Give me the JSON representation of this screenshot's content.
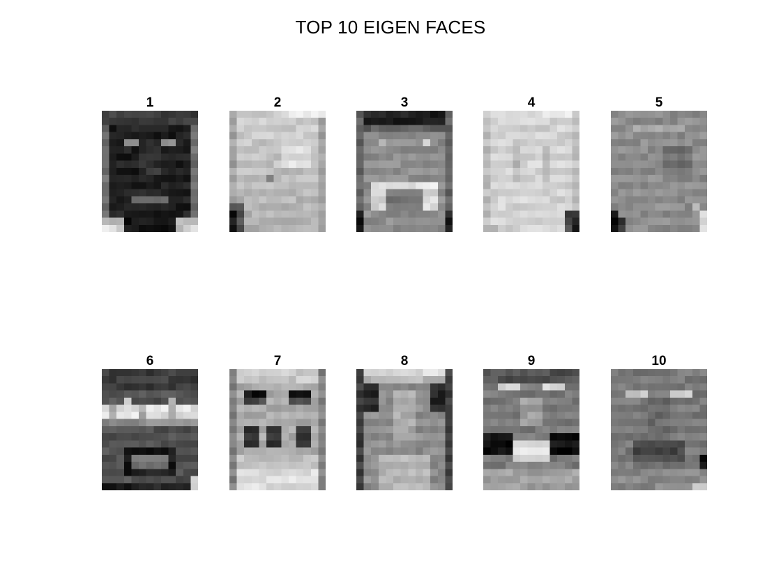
{
  "figure": {
    "title": "TOP 10 EIGEN FACES"
  },
  "panels": [
    {
      "label": "1",
      "shading": "dark",
      "feature": "dark face, pale forehead band, light cheek highlights"
    },
    {
      "label": "2",
      "shading": "light",
      "feature": "light face, dark lower-left corner"
    },
    {
      "label": "3",
      "shading": "medium",
      "feature": "dark top band, bright mouth arc"
    },
    {
      "label": "4",
      "shading": "light",
      "feature": "very light face, dark lower-right corner"
    },
    {
      "label": "5",
      "shading": "medium",
      "feature": "uniform grey, dark lower-left, bright lower-right"
    },
    {
      "label": "6",
      "shading": "dark",
      "feature": "bright wavy band across eyes, dark mouth ring"
    },
    {
      "label": "7",
      "shading": "light",
      "feature": "dark eye bars, dark cheek blobs, bright chin"
    },
    {
      "label": "8",
      "shading": "medium",
      "feature": "bright forehead band, dark sides, lighter centre"
    },
    {
      "label": "9",
      "shading": "medium",
      "feature": "light brows, dark mouth corners, bright mouth"
    },
    {
      "label": "10",
      "shading": "medium",
      "feature": "light eye marks, dark mouth, dark right edge"
    }
  ]
}
